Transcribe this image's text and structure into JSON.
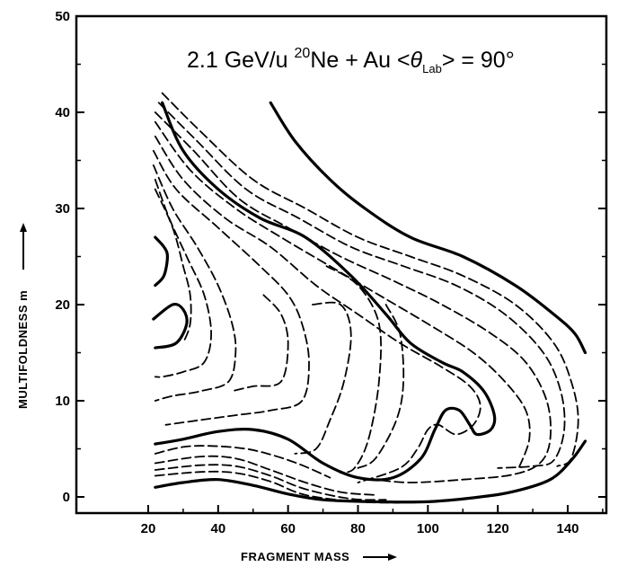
{
  "chart_data": {
    "type": "contour",
    "title": {
      "prefix": "2.1 GeV/u ",
      "projectile_mass_number": "20",
      "projectile": "Ne + Au ",
      "angle_open": "<",
      "angle_symbol": "θ",
      "angle_subscript": "Lab",
      "angle_close": "> = 90°"
    },
    "xlabel": "FRAGMENT MASS",
    "ylabel": "MULTIFOLDNESS m",
    "xlim": [
      0,
      160
    ],
    "ylim": [
      -2,
      50
    ],
    "xticks": [
      20,
      40,
      60,
      80,
      100,
      120,
      140
    ],
    "yticks": [
      0,
      10,
      20,
      30,
      40,
      50
    ],
    "x_minor_ticks": [
      30,
      50,
      70,
      90,
      110,
      130,
      150
    ],
    "y_minor_ticks": [
      5,
      15,
      25,
      35,
      45
    ],
    "contours": [
      {
        "style": "solid",
        "points": [
          [
            55,
            41
          ],
          [
            62,
            37
          ],
          [
            72,
            33
          ],
          [
            82,
            30
          ],
          [
            95,
            27
          ],
          [
            110,
            25
          ],
          [
            125,
            22
          ],
          [
            136,
            19
          ],
          [
            142,
            17
          ],
          [
            145,
            15
          ]
        ]
      },
      {
        "style": "solid",
        "points": [
          [
            24,
            41
          ],
          [
            30,
            36
          ],
          [
            40,
            32
          ],
          [
            52,
            29
          ],
          [
            65,
            27
          ],
          [
            78,
            23
          ],
          [
            88,
            19
          ],
          [
            95,
            16
          ],
          [
            104,
            14
          ],
          [
            110,
            13
          ],
          [
            116,
            11
          ],
          [
            119,
            8.5
          ],
          [
            118,
            7
          ],
          [
            114,
            6.5
          ],
          [
            112,
            7.5
          ],
          [
            109,
            9
          ],
          [
            105,
            9
          ],
          [
            102,
            7
          ],
          [
            98,
            4
          ],
          [
            90,
            2
          ],
          [
            80,
            2
          ],
          [
            70,
            3.5
          ],
          [
            60,
            6
          ],
          [
            50,
            7
          ],
          [
            40,
            6.8
          ],
          [
            30,
            6
          ],
          [
            22,
            5.5
          ]
        ]
      },
      {
        "style": "solid",
        "points": [
          [
            22,
            1
          ],
          [
            30,
            1.5
          ],
          [
            40,
            1.8
          ],
          [
            50,
            1.2
          ],
          [
            60,
            0.3
          ],
          [
            70,
            -0.3
          ],
          [
            85,
            -0.5
          ],
          [
            100,
            -0.5
          ],
          [
            115,
            0
          ],
          [
            125,
            0.6
          ],
          [
            135,
            1.8
          ],
          [
            141,
            3.8
          ],
          [
            145,
            5.8
          ]
        ]
      },
      {
        "style": "solid",
        "points": [
          [
            22,
            27
          ],
          [
            24.5,
            26
          ],
          [
            25.5,
            25
          ],
          [
            24.5,
            23
          ],
          [
            22,
            22
          ]
        ]
      },
      {
        "style": "solid",
        "points": [
          [
            21.5,
            18.5
          ],
          [
            27,
            20
          ],
          [
            30,
            19.5
          ],
          [
            31,
            18
          ],
          [
            28,
            16
          ],
          [
            22,
            15.5
          ]
        ]
      },
      {
        "style": "dashed",
        "points": [
          [
            24,
            42
          ],
          [
            35,
            38
          ],
          [
            50,
            33
          ],
          [
            65,
            30
          ],
          [
            80,
            27
          ],
          [
            95,
            25
          ],
          [
            110,
            23
          ],
          [
            125,
            20
          ],
          [
            136,
            16
          ],
          [
            141,
            12
          ],
          [
            143,
            8
          ],
          [
            141,
            4
          ],
          [
            137,
            3.2
          ]
        ]
      },
      {
        "style": "dashed",
        "points": [
          [
            23,
            41
          ],
          [
            34,
            37
          ],
          [
            48,
            32
          ],
          [
            63,
            29
          ],
          [
            78,
            26
          ],
          [
            93,
            24
          ],
          [
            108,
            22
          ],
          [
            122,
            19
          ],
          [
            133,
            15
          ],
          [
            138,
            11
          ],
          [
            139,
            7
          ],
          [
            136,
            3.8
          ],
          [
            130,
            3.2
          ],
          [
            120,
            3
          ]
        ]
      },
      {
        "style": "dashed",
        "points": [
          [
            22,
            40
          ],
          [
            33,
            36
          ],
          [
            46,
            31
          ],
          [
            60,
            28
          ],
          [
            75,
            25
          ],
          [
            90,
            22.5
          ],
          [
            104,
            20
          ],
          [
            118,
            17
          ],
          [
            128,
            14
          ],
          [
            134,
            10
          ],
          [
            135,
            6
          ],
          [
            132,
            3.5
          ],
          [
            124,
            2.3
          ],
          [
            110,
            1.8
          ],
          [
            95,
            1.5
          ],
          [
            85,
            1.8
          ]
        ]
      },
      {
        "style": "dashed",
        "points": [
          [
            22,
            39
          ],
          [
            32,
            34
          ],
          [
            45,
            30
          ],
          [
            58,
            27
          ],
          [
            72,
            24
          ],
          [
            86,
            21
          ],
          [
            100,
            18
          ],
          [
            113,
            15
          ],
          [
            122,
            12
          ],
          [
            128,
            9
          ],
          [
            129,
            6
          ],
          [
            126,
            3
          ]
        ]
      },
      {
        "style": "dashed",
        "points": [
          [
            22,
            37.5
          ],
          [
            30,
            33
          ],
          [
            42,
            29
          ],
          [
            55,
            26
          ],
          [
            68,
            22
          ],
          [
            80,
            19
          ],
          [
            92,
            16
          ],
          [
            104,
            13.5
          ],
          [
            112,
            11.5
          ],
          [
            115,
            9.5
          ],
          [
            113,
            7.5
          ],
          [
            108,
            6.5
          ],
          [
            103,
            7.5
          ],
          [
            100,
            7
          ],
          [
            97,
            5
          ],
          [
            92,
            3
          ],
          [
            80,
            1.5
          ]
        ]
      },
      {
        "style": "dashed",
        "points": [
          [
            21.5,
            36
          ],
          [
            28,
            32
          ],
          [
            40,
            28
          ],
          [
            52,
            24
          ],
          [
            60,
            21
          ],
          [
            64,
            18
          ],
          [
            66,
            14
          ],
          [
            64,
            10
          ],
          [
            55,
            9
          ],
          [
            45,
            8.5
          ],
          [
            35,
            8
          ],
          [
            25,
            7.5
          ]
        ]
      },
      {
        "style": "dashed",
        "points": [
          [
            21.5,
            34.5
          ],
          [
            27,
            30
          ],
          [
            34,
            26
          ],
          [
            40,
            22
          ],
          [
            44,
            18
          ],
          [
            45,
            15
          ],
          [
            43,
            12
          ],
          [
            35,
            11
          ],
          [
            27,
            10.5
          ],
          [
            22,
            10
          ]
        ]
      },
      {
        "style": "dashed",
        "points": [
          [
            22,
            33
          ],
          [
            26,
            29
          ],
          [
            31,
            25
          ],
          [
            36,
            21
          ],
          [
            38,
            17
          ],
          [
            36,
            14
          ],
          [
            30,
            13
          ],
          [
            24,
            12.5
          ],
          [
            22,
            12.5
          ]
        ]
      },
      {
        "style": "dashed",
        "points": [
          [
            22,
            32
          ],
          [
            27,
            28
          ],
          [
            30,
            24
          ],
          [
            32,
            21
          ],
          [
            32,
            18
          ],
          [
            30,
            16
          ]
        ]
      },
      {
        "style": "dashed",
        "points": [
          [
            53,
            21
          ],
          [
            58,
            19
          ],
          [
            60,
            16
          ],
          [
            58,
            12
          ],
          [
            50,
            11.5
          ],
          [
            44,
            11
          ]
        ]
      },
      {
        "style": "dashed",
        "points": [
          [
            67,
            20
          ],
          [
            75,
            20
          ],
          [
            78,
            17
          ],
          [
            76,
            12
          ],
          [
            72,
            8
          ],
          [
            68,
            5
          ],
          [
            62,
            4.5
          ]
        ]
      },
      {
        "style": "dashed",
        "points": [
          [
            71,
            24
          ],
          [
            80,
            22
          ],
          [
            86,
            18
          ],
          [
            86,
            12
          ],
          [
            83,
            6
          ],
          [
            79,
            3
          ],
          [
            75,
            2.5
          ]
        ]
      },
      {
        "style": "dashed",
        "points": [
          [
            88,
            20
          ],
          [
            92,
            17
          ],
          [
            93,
            12
          ],
          [
            91,
            8
          ],
          [
            85,
            4
          ],
          [
            80,
            3
          ]
        ]
      },
      {
        "style": "dashed",
        "points": [
          [
            22,
            3.5
          ],
          [
            35,
            4.2
          ],
          [
            45,
            4
          ],
          [
            55,
            2.8
          ],
          [
            65,
            1.5
          ],
          [
            75,
            0.5
          ],
          [
            85,
            0.2
          ]
        ]
      },
      {
        "style": "dashed",
        "points": [
          [
            22,
            2.8
          ],
          [
            35,
            3.3
          ],
          [
            45,
            3.2
          ],
          [
            55,
            2.2
          ],
          [
            65,
            0.8
          ],
          [
            78,
            -0.2
          ],
          [
            88,
            -0.3
          ]
        ]
      },
      {
        "style": "dashed",
        "points": [
          [
            22,
            2.2
          ],
          [
            35,
            2.6
          ],
          [
            45,
            2.5
          ],
          [
            55,
            1.6
          ],
          [
            65,
            0.2
          ],
          [
            80,
            -0.5
          ],
          [
            92,
            -0.6
          ]
        ]
      },
      {
        "style": "dashed",
        "points": [
          [
            22,
            4.5
          ],
          [
            30,
            5.2
          ],
          [
            38,
            5.3
          ],
          [
            48,
            5
          ],
          [
            56,
            4.3
          ],
          [
            64,
            3.3
          ],
          [
            72,
            2
          ]
        ]
      }
    ]
  }
}
